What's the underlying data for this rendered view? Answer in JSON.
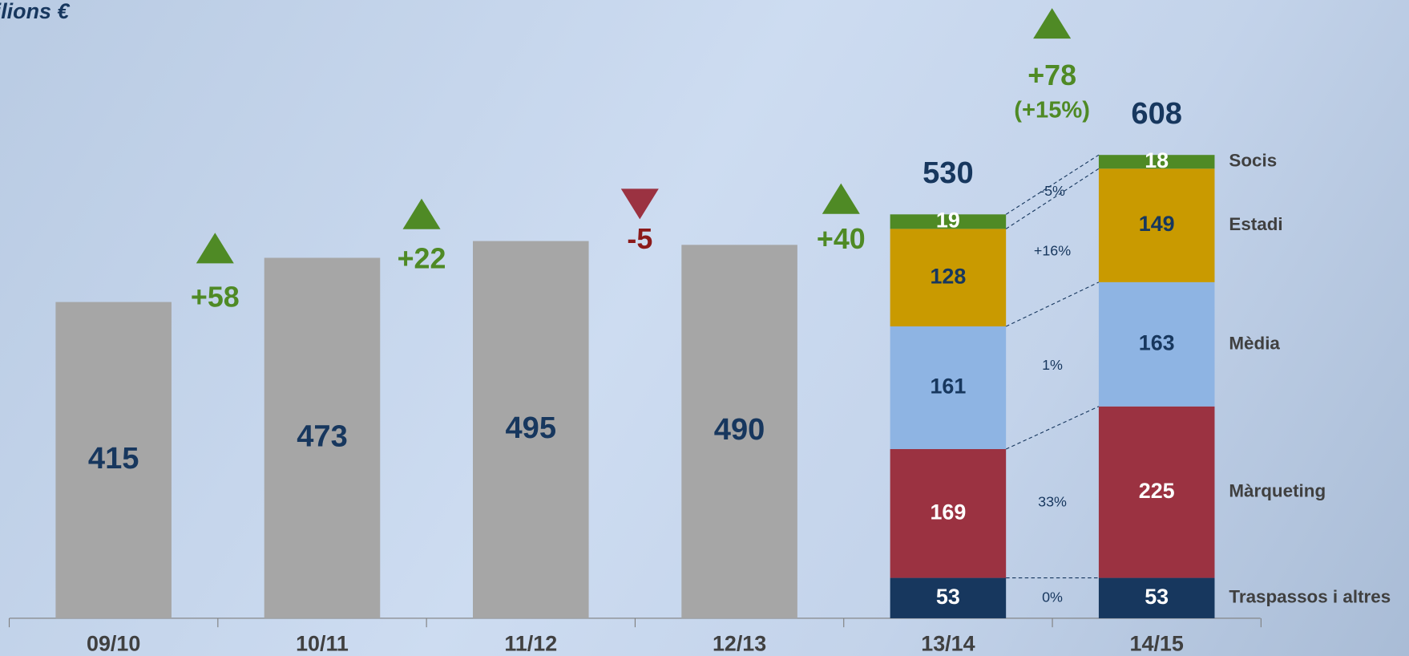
{
  "chart_data": {
    "type": "bar",
    "title": "Milions €",
    "categories": [
      "09/10",
      "10/11",
      "11/12",
      "12/13",
      "13/14",
      "14/15"
    ],
    "values": [
      415,
      473,
      495,
      490,
      null,
      null
    ],
    "color": "#a6a6a6",
    "totals": [
      null,
      null,
      null,
      null,
      530,
      608
    ],
    "series": [
      {
        "name": "Traspassos i altres",
        "color": "#17375e",
        "label_color": "#ffffff",
        "values": [
          null,
          null,
          null,
          null,
          53,
          53
        ],
        "change": 0,
        "change_label": "0%"
      },
      {
        "name": "Màrqueting",
        "color": "#9b3241",
        "label_color": "#ffffff",
        "values": [
          null,
          null,
          null,
          null,
          169,
          225
        ],
        "change": 33,
        "change_label": "33%"
      },
      {
        "name": "Mèdia",
        "color": "#8eb4e3",
        "label_color": "#17375e",
        "values": [
          null,
          null,
          null,
          null,
          161,
          163
        ],
        "change": 1,
        "change_label": "1%"
      },
      {
        "name": "Estadi",
        "color": "#c99a00",
        "label_color": "#17375e",
        "values": [
          null,
          null,
          null,
          null,
          128,
          149
        ],
        "change": 16,
        "change_label": "+16%"
      },
      {
        "name": "Socis",
        "color": "#4f8a25",
        "label_color": "#ffffff",
        "values": [
          null,
          null,
          null,
          null,
          19,
          18
        ],
        "change": -5,
        "change_label": "-5%"
      }
    ],
    "changes": [
      58,
      22,
      -5,
      40,
      78
    ],
    "change_labels": [
      "+58",
      "+22",
      "-5",
      "+40",
      "+78"
    ],
    "total_change_percent_label": "(+15%)",
    "up_color": "#4f8a25",
    "down_color": "#9b3241"
  }
}
